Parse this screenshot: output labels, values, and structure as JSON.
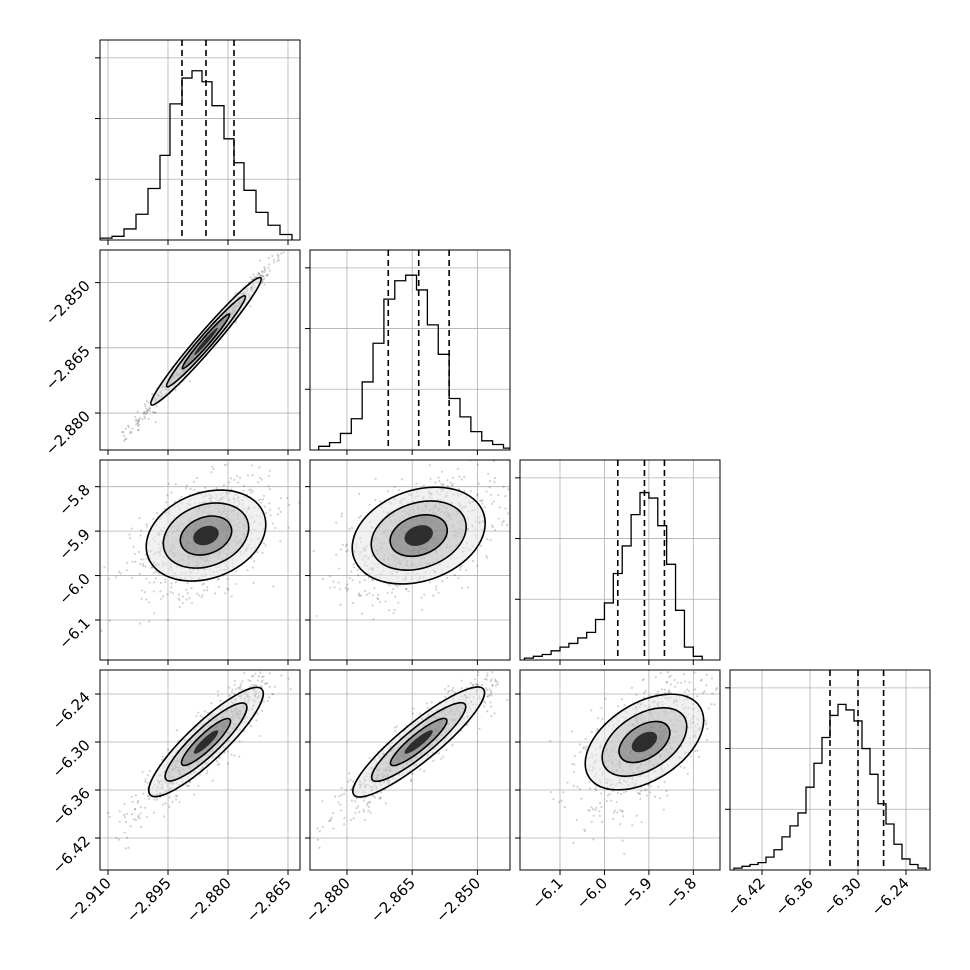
{
  "chart_data": {
    "type": "corner",
    "parameters": [
      {
        "range": [
          -2.912,
          -2.862
        ],
        "ticks": [
          -2.91,
          -2.895,
          -2.88,
          -2.865
        ],
        "tick_labels": [
          "−2.910",
          "−2.895",
          "−2.880",
          "−2.865"
        ],
        "quantiles": [
          -2.8915,
          -2.8855,
          -2.8785
        ],
        "hist_edges": [
          -2.912,
          -2.909,
          -2.906,
          -2.903,
          -2.9,
          -2.897,
          -2.8945,
          -2.8915,
          -2.889,
          -2.8865,
          -2.884,
          -2.881,
          -2.8785,
          -2.876,
          -2.873,
          -2.87,
          -2.867,
          -2.864
        ],
        "hist_counts": [
          1,
          2,
          6,
          14,
          28,
          46,
          74,
          88,
          92,
          86,
          73,
          55,
          42,
          27,
          15,
          8,
          3
        ],
        "hist_max": 100
      },
      {
        "range": [
          -2.8885,
          -2.8425
        ],
        "ticks": [
          -2.88,
          -2.865,
          -2.85
        ],
        "tick_labels": [
          "−2.880",
          "−2.865",
          "−2.850"
        ],
        "quantiles": [
          -2.8705,
          -2.8635,
          -2.8565
        ],
        "hist_edges": [
          -2.8865,
          -2.884,
          -2.8815,
          -2.879,
          -2.8765,
          -2.874,
          -2.8715,
          -2.869,
          -2.8665,
          -2.864,
          -2.8615,
          -2.859,
          -2.8565,
          -2.854,
          -2.8515,
          -2.849,
          -2.8465,
          -2.844,
          -2.8425
        ],
        "hist_counts": [
          2,
          4,
          9,
          17,
          37,
          58,
          82,
          92,
          95,
          87,
          68,
          52,
          28,
          18,
          10,
          5,
          3,
          1
        ],
        "hist_max": 100
      },
      {
        "range": [
          -6.19,
          -5.74
        ],
        "ticks": [
          -6.1,
          -6.0,
          -5.9,
          -5.8
        ],
        "tick_labels": [
          "−6.1",
          "−6.0",
          "−5.9",
          "−5.8"
        ],
        "quantiles": [
          -5.97,
          -5.91,
          -5.865
        ],
        "hist_edges": [
          -6.18,
          -6.16,
          -6.14,
          -6.12,
          -6.1,
          -6.08,
          -6.06,
          -6.04,
          -6.02,
          -6.0,
          -5.98,
          -5.96,
          -5.94,
          -5.92,
          -5.9,
          -5.88,
          -5.86,
          -5.84,
          -5.82,
          -5.8,
          -5.78
        ],
        "hist_counts": [
          1,
          2,
          3,
          5,
          7,
          9,
          12,
          15,
          22,
          31,
          47,
          62,
          79,
          91,
          88,
          73,
          52,
          27,
          7,
          2
        ],
        "hist_max": 100
      },
      {
        "range": [
          -6.46,
          -6.21
        ],
        "ticks": [
          -6.42,
          -6.36,
          -6.3,
          -6.24
        ],
        "tick_labels": [
          "−6.42",
          "−6.36",
          "−6.30",
          "−6.24"
        ],
        "quantiles": [
          -6.335,
          -6.3,
          -6.268
        ],
        "hist_edges": [
          -6.455,
          -6.445,
          -6.435,
          -6.425,
          -6.415,
          -6.405,
          -6.395,
          -6.385,
          -6.375,
          -6.365,
          -6.355,
          -6.345,
          -6.335,
          -6.325,
          -6.315,
          -6.305,
          -6.295,
          -6.285,
          -6.275,
          -6.265,
          -6.255,
          -6.245,
          -6.235,
          -6.225,
          -6.215
        ],
        "hist_counts": [
          1,
          2,
          3,
          4,
          7,
          11,
          18,
          24,
          31,
          45,
          58,
          72,
          84,
          90,
          87,
          81,
          66,
          52,
          36,
          25,
          14,
          6,
          3,
          1
        ],
        "hist_max": 100
      }
    ],
    "correlations": {
      "1_0": 0.99,
      "2_0": 0.42,
      "2_1": 0.45,
      "3_0": 0.92,
      "3_1": 0.93,
      "3_2": 0.55
    },
    "grid": true,
    "legend": "none"
  }
}
